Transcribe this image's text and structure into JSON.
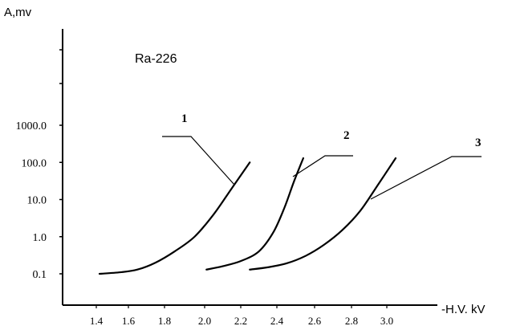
{
  "chart_data": {
    "type": "line",
    "title": "Ra-226",
    "ylabel": "A,mv",
    "xlabel": "-H.V. kV",
    "y_scale": "log",
    "y_tick_labels": [
      "0.1",
      "1.0",
      "10.0",
      "100.0",
      "1000.0"
    ],
    "y_tick_values": [
      0.1,
      1,
      10,
      100,
      1000
    ],
    "x_tick_labels": [
      "1.4",
      "1.6",
      "1.8",
      "2.0",
      "2.2",
      "2.4",
      "2.6",
      "2.8",
      "3.0"
    ],
    "x_tick_values": [
      1.4,
      1.6,
      1.8,
      2.0,
      2.2,
      2.4,
      2.6,
      2.8,
      3.0
    ],
    "xlim": [
      1.4,
      3.0
    ],
    "ylim": [
      0.1,
      1000
    ],
    "grid": false,
    "series": [
      {
        "name": "1",
        "color": "#000000",
        "x": [
          1.42,
          1.55,
          1.65,
          1.75,
          1.85,
          1.95,
          2.05,
          2.15,
          2.25
        ],
        "y": [
          0.1,
          0.11,
          0.13,
          0.2,
          0.4,
          1.0,
          4.0,
          20,
          100
        ]
      },
      {
        "name": "2",
        "color": "#000000",
        "x": [
          2.01,
          2.1,
          2.2,
          2.3,
          2.38,
          2.44,
          2.49,
          2.54
        ],
        "y": [
          0.13,
          0.16,
          0.22,
          0.4,
          1.3,
          6,
          30,
          130
        ]
      },
      {
        "name": "3",
        "color": "#000000",
        "x": [
          2.25,
          2.35,
          2.45,
          2.55,
          2.65,
          2.75,
          2.85,
          2.95,
          3.05
        ],
        "y": [
          0.13,
          0.15,
          0.19,
          0.3,
          0.6,
          1.5,
          5,
          25,
          130
        ]
      }
    ]
  }
}
